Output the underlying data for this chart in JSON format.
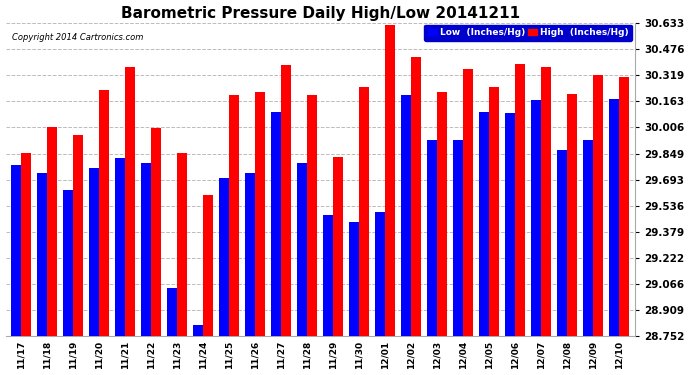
{
  "title": "Barometric Pressure Daily High/Low 20141211",
  "copyright": "Copyright 2014 Cartronics.com",
  "categories": [
    "11/17",
    "11/18",
    "11/19",
    "11/20",
    "11/21",
    "11/22",
    "11/23",
    "11/24",
    "11/25",
    "11/26",
    "11/27",
    "11/28",
    "11/29",
    "11/30",
    "12/01",
    "12/02",
    "12/03",
    "12/04",
    "12/05",
    "12/06",
    "12/07",
    "12/08",
    "12/09",
    "12/10"
  ],
  "low_values": [
    29.78,
    29.73,
    29.63,
    29.76,
    29.82,
    29.79,
    29.04,
    28.82,
    29.7,
    29.73,
    30.1,
    29.79,
    29.48,
    29.44,
    29.5,
    30.2,
    29.93,
    29.93,
    30.1,
    30.09,
    30.17,
    29.87,
    29.93,
    30.18
  ],
  "high_values": [
    29.85,
    30.01,
    29.96,
    30.23,
    30.37,
    30.0,
    29.85,
    29.6,
    30.2,
    30.22,
    30.38,
    30.2,
    29.83,
    30.25,
    30.62,
    30.43,
    30.22,
    30.36,
    30.25,
    30.39,
    30.37,
    30.21,
    30.32,
    30.31
  ],
  "ymin": 28.752,
  "ymax": 30.633,
  "yticks": [
    28.752,
    28.909,
    29.066,
    29.222,
    29.379,
    29.536,
    29.693,
    29.849,
    30.006,
    30.163,
    30.319,
    30.476,
    30.633
  ],
  "low_color": "#0000ff",
  "high_color": "#ff0000",
  "bg_color": "#ffffff",
  "grid_color": "#bbbbbb",
  "title_fontsize": 11,
  "tick_fontsize": 7.5,
  "xtick_fontsize": 6.5,
  "legend_label_low": "Low  (Inches/Hg)",
  "legend_label_high": "High  (Inches/Hg)",
  "legend_bg": "#0000cc"
}
